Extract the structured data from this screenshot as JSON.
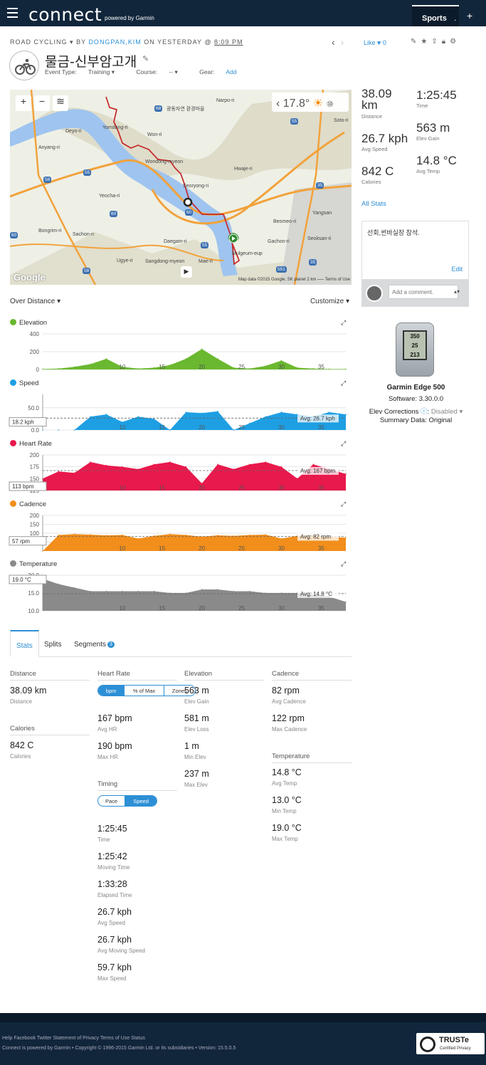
{
  "app": {
    "logo": "connect",
    "logo_sub": "powered by Garmin",
    "sports_tab": "Sports",
    "sports_dot": ".",
    "plus": "+"
  },
  "activity": {
    "type": "ROAD CYCLING",
    "type_arrow": "▾",
    "by": "BY",
    "author": "DONGPAN,KIM",
    "on": "ON YESTERDAY @",
    "time": "8:09 PM",
    "title": "물금-신부암고개",
    "event_type_label": "Event Type:",
    "event_type": "Training ▾",
    "course_label": "Course:",
    "course": "-- ▾",
    "gear_label": "Gear:",
    "gear_link": "Add",
    "like_label": "Like",
    "like_count": "0"
  },
  "map": {
    "zoom_in": "+",
    "zoom_out": "−",
    "temp": "17.8°",
    "credit": "Map data ©2015 Google, SK planet   2 km ⎯⎯⎯   Terms of Use",
    "google": "Google",
    "labels": [
      "Narpo-ri",
      "광동자연 환경마을",
      "Yomdang-ri",
      "Won-ri",
      "Deyo-ri",
      "Anyang-ri",
      "Wondong-myeon",
      "Hwaje-ri",
      "Yeocha-ri",
      "Seoryong-ri",
      "Yangsan",
      "Bongrim-ri",
      "Sachon-ri",
      "Beomeo-ri",
      "Daegam-ri",
      "Gachon-ri",
      "Seoksan-ri",
      "Mulgeum-eup",
      "Ugye-ri",
      "Sangdong-myeon",
      "Mae-ri",
      "Soto-ri"
    ],
    "roads": [
      "68",
      "55",
      "35",
      "58",
      "60",
      "55",
      "35",
      "60",
      "58",
      "551",
      "60",
      "55"
    ]
  },
  "summary": [
    {
      "value": "38.09 km",
      "label": "Distance"
    },
    {
      "value": "1:25:45",
      "label": "Time"
    },
    {
      "value": "26.7 kph",
      "label": "Avg Speed"
    },
    {
      "value": "563 m",
      "label": "Elev Gain"
    },
    {
      "value": "842 C",
      "label": "Calories"
    },
    {
      "value": "14.8 °C",
      "label": "Avg Temp"
    }
  ],
  "all_stats": "All Stats",
  "notes": {
    "text": "선회,썬바실장 참석.",
    "edit": "Edit",
    "comment_placeholder": "Add a comment."
  },
  "device": {
    "name": "Garmin Edge 500",
    "software": "Software: 3.30.0.0",
    "elev_corr_label": "Elev Corrections",
    "elev_corr_value": "Disabled ▾",
    "summary": "Summary Data: Original",
    "screen": [
      "350",
      "25",
      "213"
    ]
  },
  "chart_controls": {
    "left": "Over Distance ▾",
    "right": "Customize ▾"
  },
  "chart_data": [
    {
      "type": "area",
      "title": "Elevation",
      "color": "#6ab82f",
      "ylim": [
        0,
        400
      ],
      "yticks": [
        "400",
        "200",
        "0"
      ],
      "x": [
        0,
        2,
        4,
        6,
        8,
        10,
        12,
        14,
        16,
        18,
        20,
        22,
        24,
        26,
        28,
        30,
        32,
        34,
        36,
        38.09
      ],
      "y": [
        5,
        10,
        30,
        60,
        120,
        30,
        10,
        20,
        50,
        120,
        230,
        120,
        20,
        10,
        40,
        100,
        20,
        10,
        5,
        5
      ],
      "xticks": [
        "10",
        "15",
        "20",
        "25",
        "30",
        "35"
      ],
      "current": "",
      "avg": ""
    },
    {
      "type": "area",
      "title": "Speed",
      "color": "#1e9fe3",
      "ylim": [
        0,
        80
      ],
      "yticks": [
        "50.0",
        "0.0"
      ],
      "x": [
        0,
        2,
        4,
        6,
        8,
        10,
        12,
        14,
        16,
        18,
        20,
        22,
        24,
        26,
        28,
        30,
        32,
        34,
        36,
        38.09
      ],
      "y": [
        0,
        0,
        0,
        30,
        35,
        18,
        30,
        25,
        0,
        40,
        38,
        42,
        0,
        15,
        30,
        40,
        35,
        30,
        40,
        35
      ],
      "xticks": [
        "10",
        "15",
        "20",
        "25",
        "30",
        "35"
      ],
      "current": "18.2 kph",
      "avg": "Avg: 26.7 kph"
    },
    {
      "type": "area",
      "title": "Heart Rate",
      "color": "#e8194c",
      "ylim": [
        125,
        200
      ],
      "yticks": [
        "200",
        "175",
        "150",
        "125"
      ],
      "x": [
        0,
        2,
        4,
        6,
        8,
        10,
        12,
        14,
        16,
        18,
        20,
        22,
        24,
        26,
        28,
        30,
        32,
        34,
        36,
        38.09
      ],
      "y": [
        150,
        165,
        162,
        185,
        178,
        175,
        170,
        180,
        185,
        175,
        140,
        180,
        170,
        180,
        185,
        175,
        150,
        180,
        170,
        160
      ],
      "xticks": [
        "10",
        "15",
        "20",
        "25",
        "30",
        "35"
      ],
      "current": "113 bpm",
      "avg": "Avg: 167 bpm"
    },
    {
      "type": "area",
      "title": "Cadence",
      "color": "#f18e1c",
      "ylim": [
        0,
        200
      ],
      "yticks": [
        "200",
        "150",
        "100",
        "50"
      ],
      "x": [
        0,
        2,
        4,
        6,
        8,
        10,
        12,
        14,
        16,
        18,
        20,
        22,
        24,
        26,
        28,
        30,
        32,
        34,
        36,
        38.09
      ],
      "y": [
        0,
        90,
        95,
        92,
        88,
        90,
        70,
        85,
        95,
        90,
        80,
        88,
        85,
        90,
        92,
        70,
        85,
        88,
        80,
        75
      ],
      "xticks": [
        "10",
        "15",
        "20",
        "25",
        "30",
        "35"
      ],
      "current": "57 rpm",
      "avg": "Avg: 82 rpm"
    },
    {
      "type": "area",
      "title": "Temperature",
      "color": "#8a8a8a",
      "ylim": [
        10,
        20
      ],
      "yticks": [
        "20.0",
        "15.0",
        "10.0"
      ],
      "x": [
        0,
        2,
        4,
        6,
        8,
        10,
        12,
        14,
        16,
        18,
        20,
        22,
        24,
        26,
        28,
        30,
        32,
        34,
        36,
        38.09
      ],
      "y": [
        19,
        17.5,
        16.5,
        15.5,
        15.5,
        15.5,
        15.5,
        15.5,
        15,
        15,
        16,
        16,
        15.5,
        15.5,
        15,
        15,
        15,
        14.5,
        14,
        12.5
      ],
      "xticks": [
        "10",
        "15",
        "20",
        "25",
        "30",
        "35"
      ],
      "current": "19.0 °C",
      "avg": "Avg: 14.8 °C"
    }
  ],
  "tabs": [
    {
      "label": "Stats"
    },
    {
      "label": "Splits"
    },
    {
      "label": "Segments",
      "badge": "3"
    }
  ],
  "stats": {
    "distance": {
      "header": "Distance",
      "value": "38.09 km",
      "label": "Distance"
    },
    "calories": {
      "header": "Calories",
      "value": "842 C",
      "label": "Calories"
    },
    "heart_rate": {
      "header": "Heart Rate",
      "toggle": [
        "bpm",
        "% of Max",
        "Zones"
      ],
      "items": [
        {
          "value": "167 bpm",
          "label": "Avg HR"
        },
        {
          "value": "190 bpm",
          "label": "Max HR"
        }
      ]
    },
    "timing": {
      "header": "Timing",
      "toggle": [
        "Pace",
        "Speed"
      ],
      "items": [
        {
          "value": "1:25:45",
          "label": "Time"
        },
        {
          "value": "1:25:42",
          "label": "Moving Time"
        },
        {
          "value": "1:33:28",
          "label": "Elapsed Time"
        },
        {
          "value": "26.7 kph",
          "label": "Avg Speed"
        },
        {
          "value": "26.7 kph",
          "label": "Avg Moving Speed"
        },
        {
          "value": "59.7 kph",
          "label": "Max Speed"
        }
      ]
    },
    "elevation": {
      "header": "Elevation",
      "items": [
        {
          "value": "563 m",
          "label": "Elev Gain"
        },
        {
          "value": "581 m",
          "label": "Elev Loss"
        },
        {
          "value": "1 m",
          "label": "Min Elev"
        },
        {
          "value": "237 m",
          "label": "Max Elev"
        }
      ]
    },
    "cadence": {
      "header": "Cadence",
      "items": [
        {
          "value": "82 rpm",
          "label": "Avg Cadence"
        },
        {
          "value": "122 rpm",
          "label": "Max Cadence"
        }
      ]
    },
    "temperature": {
      "header": "Temperature",
      "items": [
        {
          "value": "14.8 °C",
          "label": "Avg Temp"
        },
        {
          "value": "13.0 °C",
          "label": "Min Temp"
        },
        {
          "value": "19.0 °C",
          "label": "Max Temp"
        }
      ]
    }
  },
  "footer": {
    "links": "Help Facebook Twitter Statement of Privacy Terms of Use Status",
    "copy": "Connect is powered by Garmin • Copyright © 1996-2015 Garmin Ltd. or its subsidiaries • Version: 15.5.0.5",
    "truste": "TRUSTe",
    "truste_sub": "Certified Privacy"
  }
}
